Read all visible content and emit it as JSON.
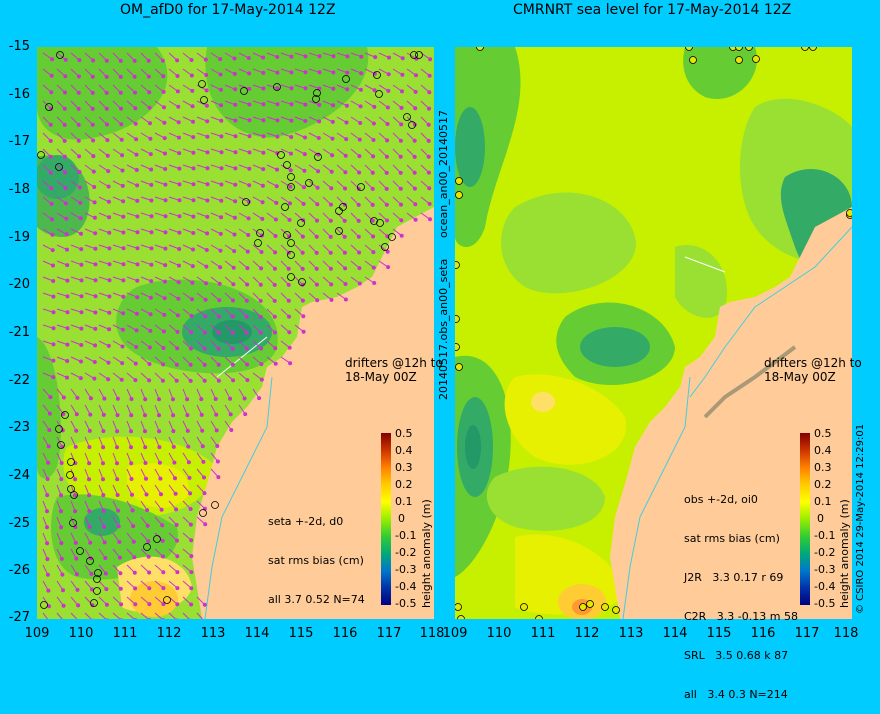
{
  "left_panel": {
    "title": "OM_afD0 for 17-May-2014 12Z",
    "stats_lines": [
      "seta +-2d, d0",
      "sat rms bias (cm)",
      "all 3.7 0.52 N=74"
    ],
    "drifters_lines": [
      "drifters @12h to",
      "18-May 00Z"
    ]
  },
  "right_panel": {
    "title": "CMRNRT sea level  for 17-May-2014 12Z",
    "stats_lines": [
      "obs +-2d, oi0",
      "sat rms bias (cm)",
      "J2R   3.3 0.17 r 69",
      "C2R   3.3 -0.13 m 58",
      "SRL   3.5 0.68 k 87",
      "all   3.4 0.3 N=214"
    ],
    "drifters_lines": [
      "drifters @12h to",
      "18-May 00Z"
    ],
    "side_label_top": "ocean_an00_20140517",
    "side_label_bottom": "20140517.obs_an00_seta",
    "footer": "© CSIRO 2014  29-May-2014 12:29:01"
  },
  "axes": {
    "lat_ticks": [
      "-15",
      "-16",
      "-17",
      "-18",
      "-19",
      "-20",
      "-21",
      "-22",
      "-23",
      "-24",
      "-25",
      "-26",
      "-27"
    ],
    "lon_ticks": [
      "109",
      "110",
      "111",
      "112",
      "113",
      "114",
      "115",
      "116",
      "117",
      "118"
    ],
    "xlim": [
      109,
      118
    ],
    "ylim": [
      -27,
      -15
    ]
  },
  "colorbar": {
    "label": "height anomaly (m)",
    "ticks": [
      "0.5",
      "0.4",
      "0.3",
      "0.2",
      "0.1",
      "0",
      "-0.1",
      "-0.2",
      "-0.3",
      "-0.4",
      "-0.5"
    ],
    "colors": [
      "#800000",
      "#cc3300",
      "#ff8000",
      "#ffcc00",
      "#ffff00",
      "#99ee00",
      "#33cc33",
      "#00aa77",
      "#0077cc",
      "#0033aa",
      "#000080"
    ]
  },
  "colors": {
    "background": "#00ccff",
    "land": "#ffcc99",
    "ocean_base": "#99e033",
    "arrows": "#cc33cc"
  }
}
